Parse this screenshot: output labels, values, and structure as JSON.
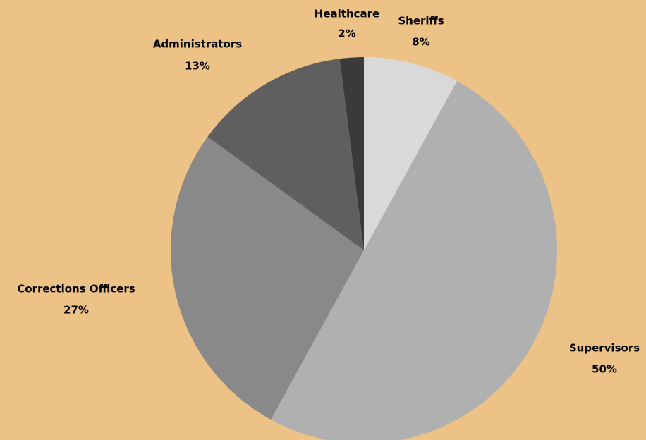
{
  "chart_data": {
    "type": "pie",
    "categories": [
      "Sheriffs",
      "Supervisors",
      "Corrections Officers",
      "Administrators",
      "Healthcare"
    ],
    "values": [
      8,
      50,
      27,
      13,
      2
    ],
    "value_labels": [
      "8%",
      "50%",
      "27%",
      "13%",
      "2%"
    ],
    "colors": [
      "#d9d9d9",
      "#b0b0b0",
      "#898989",
      "#5f5f5f",
      "#3a3a3a"
    ]
  }
}
